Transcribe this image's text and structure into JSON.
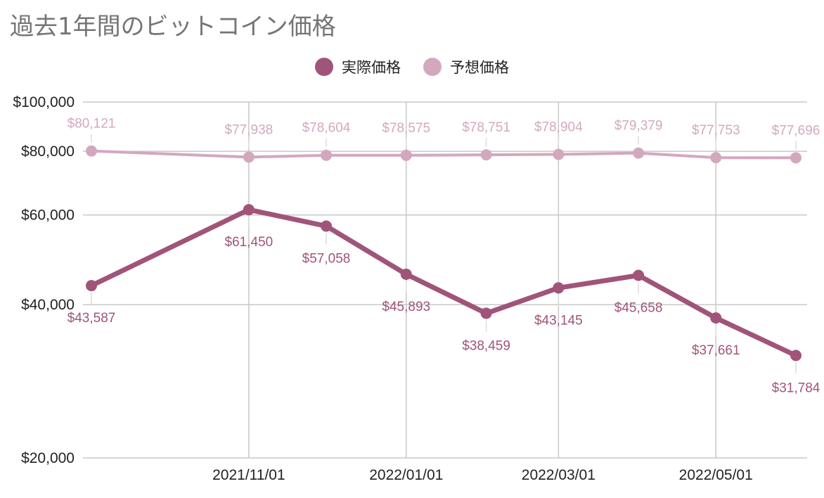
{
  "chart_data": {
    "type": "line",
    "title": "過去1年間のビットコイン価格",
    "y_scale": "log",
    "ylim": [
      20000,
      100000
    ],
    "y_ticks": [
      20000,
      40000,
      60000,
      80000,
      100000
    ],
    "y_tick_labels": [
      "$20,000",
      "$40,000",
      "$60,000",
      "$80,000",
      "$100,000"
    ],
    "x": [
      "2021/09/01",
      "2021/11/01",
      "2021/12/01",
      "2022/01/01",
      "2022/02/01",
      "2022/03/01",
      "2022/04/01",
      "2022/05/01",
      "2022/06/01"
    ],
    "x_tick_labels": [
      "2021/11/01",
      "2022/01/01",
      "2022/03/01",
      "2022/05/01"
    ],
    "legend_position": "top-center",
    "grid": true,
    "series": [
      {
        "name": "実際価格",
        "color": "#a05479",
        "values": [
          43587,
          61450,
          57058,
          45893,
          38459,
          43145,
          45658,
          37661,
          31784
        ],
        "labels": [
          "$43,587",
          "$61,450",
          "$57,058",
          "$45,893",
          "$38,459",
          "$43,145",
          "$45,658",
          "$37,661",
          "$31,784"
        ]
      },
      {
        "name": "予想価格",
        "color": "#d3a8bf",
        "values": [
          80121,
          77938,
          78604,
          78575,
          78751,
          78904,
          79379,
          77753,
          77696
        ],
        "labels": [
          "$80,121",
          "$77,938",
          "$78,604",
          "$78,575",
          "$78,751",
          "$78,904",
          "$79,379",
          "$77,753",
          "$77,696"
        ]
      }
    ]
  }
}
